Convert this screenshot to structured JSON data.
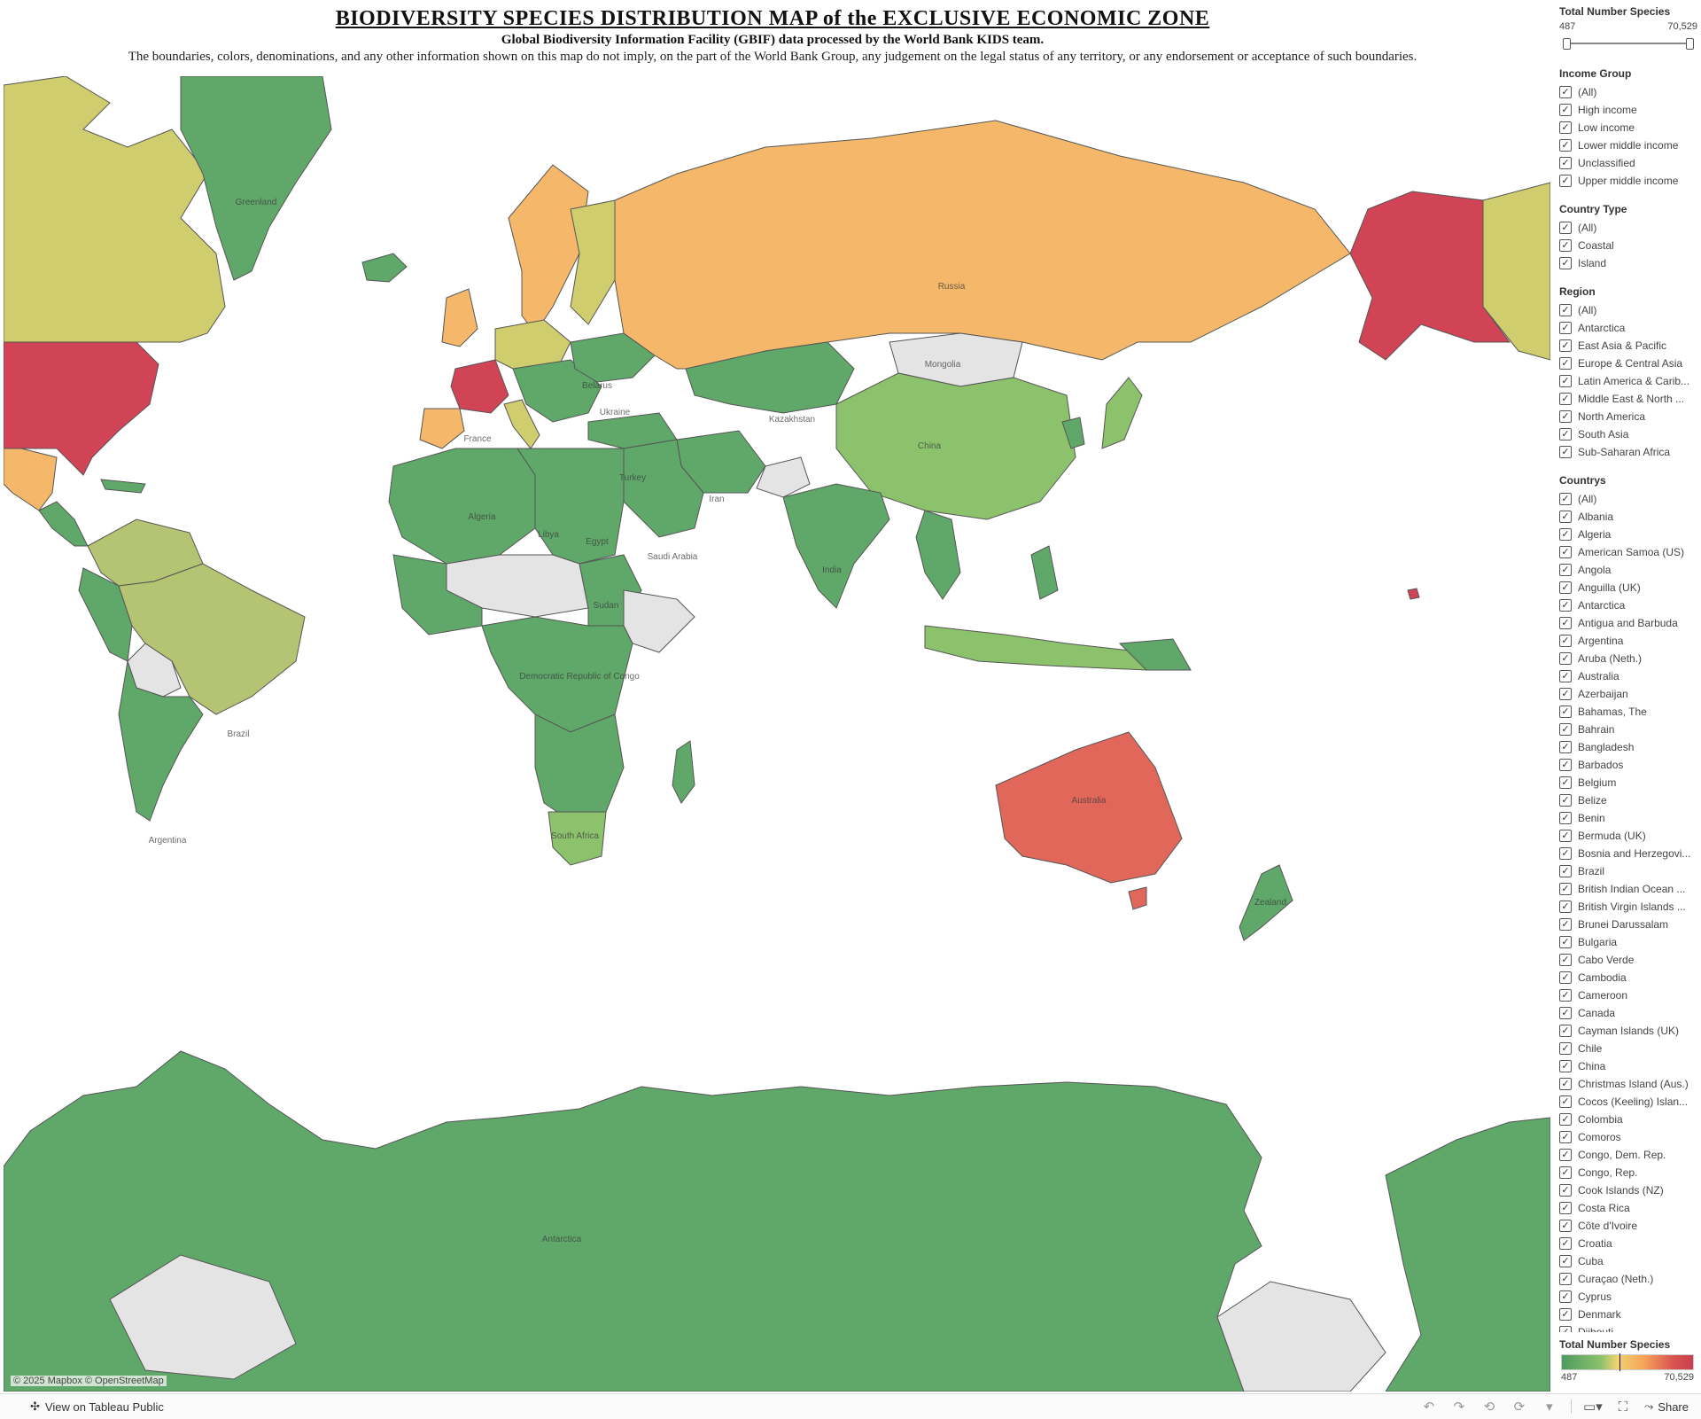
{
  "header": {
    "title": "BIODIVERSITY SPECIES DISTRIBUTION MAP of the EXCLUSIVE ECONOMIC ZONE",
    "subtitle": "Global Biodiversity Information Facility (GBIF) data processed by the World Bank KIDS team.",
    "disclaimer": "The boundaries, colors, denominations, and any other information shown on this map do not imply, on the part of the World Bank Group, any judgement on the legal status of any territory, or any endorsement or acceptance of such boundaries."
  },
  "map": {
    "attribution": "© 2025 Mapbox  © OpenStreetMap",
    "labels": {
      "greenland": "Greenland",
      "russia": "Russia",
      "mongolia": "Mongolia",
      "china": "China",
      "kazakhstan": "Kazakhstan",
      "belarus": "Belarus",
      "ukraine": "Ukraine",
      "algeria": "Algeria",
      "libya": "Libya",
      "egypt": "Egypt",
      "sudan": "Sudan",
      "saudi_arabia": "Saudi Arabia",
      "iran": "Iran",
      "india": "India",
      "drc": "Democratic Republic of Congo",
      "south_africa": "South Africa",
      "brazil": "Brazil",
      "argentina": "Argentina",
      "australia": "Australia",
      "new_zealand": "Zealand",
      "antarctica": "Antarctica",
      "france": "France",
      "turkey": "Turkey"
    },
    "colors": {
      "very_low": "#4e9a5f",
      "low": "#5fa86a",
      "mid_low": "#8cc26c",
      "mid": "#b5c473",
      "mid_yellow": "#cfcd6e",
      "high": "#f5b86a",
      "very_high": "#e0675a",
      "max": "#d14456",
      "no_data": "#e4e4e4"
    }
  },
  "sidebar": {
    "slider": {
      "title": "Total Number Species",
      "min_label": "487",
      "max_label": "70,529"
    },
    "income_group": {
      "title": "Income Group",
      "items": [
        "(All)",
        "High income",
        "Low income",
        "Lower middle income",
        "Unclassified",
        "Upper middle income"
      ]
    },
    "country_type": {
      "title": "Country Type",
      "items": [
        "(All)",
        "Coastal",
        "Island"
      ]
    },
    "region": {
      "title": "Region",
      "items": [
        "(All)",
        "Antarctica",
        "East Asia & Pacific",
        "Europe & Central Asia",
        "Latin America & Carib...",
        "Middle East & North ...",
        "North America",
        "South Asia",
        "Sub-Saharan Africa"
      ]
    },
    "countries": {
      "title": "Countrys",
      "items": [
        "(All)",
        "Albania",
        "Algeria",
        "American Samoa (US)",
        "Angola",
        "Anguilla (UK)",
        "Antarctica",
        "Antigua and Barbuda",
        "Argentina",
        "Aruba (Neth.)",
        "Australia",
        "Azerbaijan",
        "Bahamas, The",
        "Bahrain",
        "Bangladesh",
        "Barbados",
        "Belgium",
        "Belize",
        "Benin",
        "Bermuda (UK)",
        "Bosnia and Herzegovi...",
        "Brazil",
        "British Indian Ocean ...",
        "British Virgin Islands ...",
        "Brunei Darussalam",
        "Bulgaria",
        "Cabo Verde",
        "Cambodia",
        "Cameroon",
        "Canada",
        "Cayman Islands (UK)",
        "Chile",
        "China",
        "Christmas Island (Aus.)",
        "Cocos (Keeling) Islan...",
        "Colombia",
        "Comoros",
        "Congo, Dem. Rep.",
        "Congo, Rep.",
        "Cook Islands (NZ)",
        "Costa Rica",
        "Côte d'Ivoire",
        "Croatia",
        "Cuba",
        "Curaçao (Neth.)",
        "Cyprus",
        "Denmark",
        "Djibouti"
      ]
    },
    "legend": {
      "title": "Total Number Species",
      "min_label": "487",
      "max_label": "70,529"
    }
  },
  "toolbar": {
    "view_label": "View on Tableau Public",
    "share_label": "Share"
  }
}
